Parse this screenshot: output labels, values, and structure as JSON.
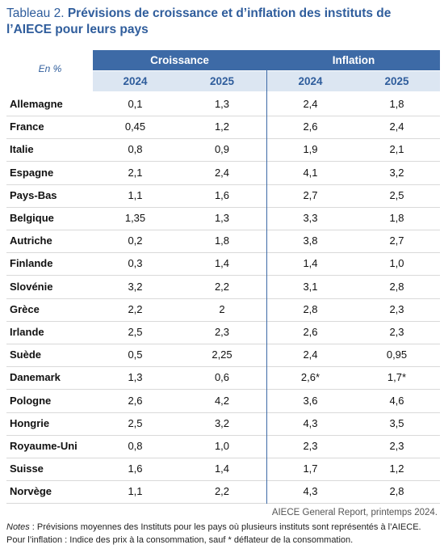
{
  "title": {
    "label": "Tableau 2.",
    "text": "Prévisions de croissance et d’inflation des instituts de l’AIECE pour leurs pays"
  },
  "table": {
    "unit": "En %",
    "groups": [
      "Croissance",
      "Inflation"
    ],
    "years": [
      "2024",
      "2025",
      "2024",
      "2025"
    ],
    "rows": [
      [
        "Allemagne",
        "0,1",
        "1,3",
        "2,4",
        "1,8"
      ],
      [
        "France",
        "0,45",
        "1,2",
        "2,6",
        "2,4"
      ],
      [
        "Italie",
        "0,8",
        "0,9",
        "1,9",
        "2,1"
      ],
      [
        "Espagne",
        "2,1",
        "2,4",
        "4,1",
        "3,2"
      ],
      [
        "Pays-Bas",
        "1,1",
        "1,6",
        "2,7",
        "2,5"
      ],
      [
        "Belgique",
        "1,35",
        "1,3",
        "3,3",
        "1,8"
      ],
      [
        "Autriche",
        "0,2",
        "1,8",
        "3,8",
        "2,7"
      ],
      [
        "Finlande",
        "0,3",
        "1,4",
        "1,4",
        "1,0"
      ],
      [
        "Slovénie",
        "3,2",
        "2,2",
        "3,1",
        "2,8"
      ],
      [
        "Grèce",
        "2,2",
        "2",
        "2,8",
        "2,3"
      ],
      [
        "Irlande",
        "2,5",
        "2,3",
        "2,6",
        "2,3"
      ],
      [
        "Suède",
        "0,5",
        "2,25",
        "2,4",
        "0,95"
      ],
      [
        "Danemark",
        "1,3",
        "0,6",
        "2,6*",
        "1,7*"
      ],
      [
        "Pologne",
        "2,6",
        "4,2",
        "3,6",
        "4,6"
      ],
      [
        "Hongrie",
        "2,5",
        "3,2",
        "4,3",
        "3,5"
      ],
      [
        "Royaume-Uni",
        "0,8",
        "1,0",
        "2,3",
        "2,3"
      ],
      [
        "Suisse",
        "1,6",
        "1,4",
        "1,7",
        "1,2"
      ],
      [
        "Norvège",
        "1,1",
        "2,2",
        "4,3",
        "2,8"
      ]
    ]
  },
  "source": "AIECE General Report, printemps 2024.",
  "notes": {
    "label": "Notes",
    "lines": [
      " : Prévisions moyennes des Instituts pour les pays où plusieurs instituts sont représentés à l’AIECE.",
      "Pour l’inflation : Indice des prix à la consommation, sauf * déflateur de la consommation."
    ]
  }
}
